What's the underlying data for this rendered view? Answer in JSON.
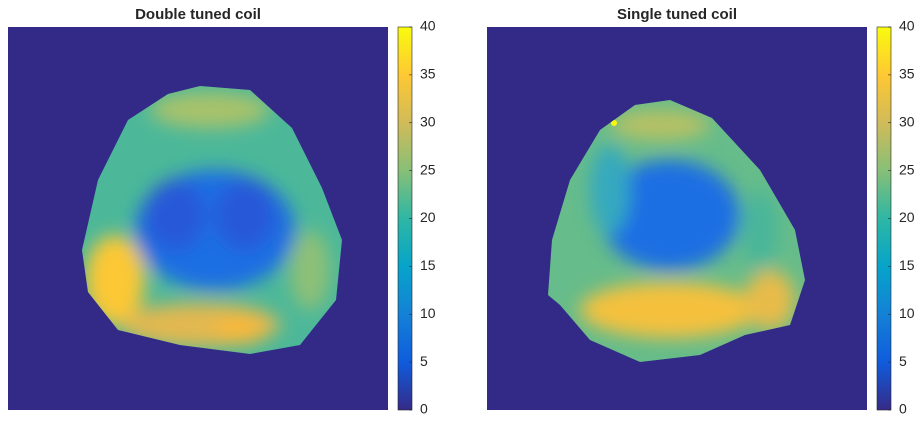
{
  "chart_data": [
    {
      "type": "heatmap",
      "title": "Double tuned coil",
      "clim": [
        0,
        40
      ],
      "cticks": [
        0,
        5,
        10,
        15,
        20,
        25,
        30,
        35,
        40
      ]
    },
    {
      "type": "heatmap",
      "title": "Single tuned coil",
      "clim": [
        0,
        40
      ],
      "cticks": [
        0,
        5,
        10,
        15,
        20,
        25,
        30,
        35,
        40
      ]
    }
  ]
}
